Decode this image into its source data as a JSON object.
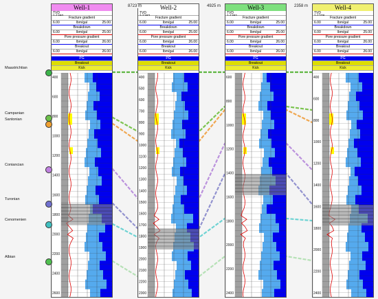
{
  "wells": [
    {
      "name": "Well-1",
      "title_color": "#f08cf0",
      "tvd": "1:1380",
      "pore_from": "6.00",
      "pore_to": "26.00",
      "frac_from": "6.00",
      "frac_to": "25.00",
      "ticks": [
        "400",
        "600",
        "800",
        "1000",
        "1200",
        "1400",
        "1600",
        "1800",
        "2000",
        "2200",
        "2400",
        "2600"
      ]
    },
    {
      "name": "Well-2",
      "title_color": "#ffffff",
      "tvd": "1:1382",
      "pore_from": "6.00",
      "pore_to": "26.00",
      "frac_from": "6.00",
      "frac_to": "25.00",
      "ticks": [
        "400",
        "500",
        "600",
        "700",
        "800",
        "900",
        "1000",
        "1100",
        "1200",
        "1300",
        "1400",
        "1500",
        "1600",
        "1700",
        "1800",
        "1900",
        "2000",
        "2100",
        "2200",
        "2300"
      ]
    },
    {
      "name": "Well-3",
      "title_color": "#7ee07e",
      "tvd": "1:1381",
      "pore_from": "6.00",
      "pore_to": "26.00",
      "frac_from": "6.00",
      "frac_to": "25.00",
      "ticks": [
        "600",
        "800",
        "1000",
        "1200",
        "1400",
        "1600",
        "1800",
        "2000",
        "2200",
        "2400"
      ]
    },
    {
      "name": "Well-4",
      "title_color": "#f0f070",
      "tvd": "1:1278",
      "pore_from": "6.00",
      "pore_to": "26.00",
      "frac_from": "6.00",
      "frac_to": "25.00",
      "ticks": [
        "400",
        "600",
        "800",
        "1000",
        "1200",
        "1400",
        "1600",
        "1800",
        "2000",
        "2200",
        "2400"
      ]
    }
  ],
  "header_rows": {
    "tvd_label": "TVD",
    "fracture_gradient": "Fracture gradient",
    "unit": "lbm/gal",
    "breakdown": "Breakdown",
    "pore_pressure": "Pore pressure gradient",
    "breakout": "Breakout",
    "pg": "PG",
    "breakout_band": "Breakout",
    "kick": "Kick"
  },
  "distances": [
    "8723 m",
    "4925 m",
    "2358 m"
  ],
  "formations": [
    {
      "name": "Maastrichtian",
      "color": "#3cb44b"
    },
    {
      "name": "Campanian",
      "color": "#6cc04a"
    },
    {
      "name": "Santonian",
      "color": "#f0a030"
    },
    {
      "name": "Coniancian",
      "color": "#c080e0"
    },
    {
      "name": "Turonian",
      "color": "#7070d0"
    },
    {
      "name": "Cenomenien",
      "color": "#40c0c0"
    },
    {
      "name": "Albian",
      "color": "#50c050"
    }
  ],
  "colors": {
    "mud": "#0000ee",
    "light_blue": "#55aaee",
    "gray": "#a0a0a0",
    "yellow": "#ffff00",
    "red": "#dd0000"
  }
}
